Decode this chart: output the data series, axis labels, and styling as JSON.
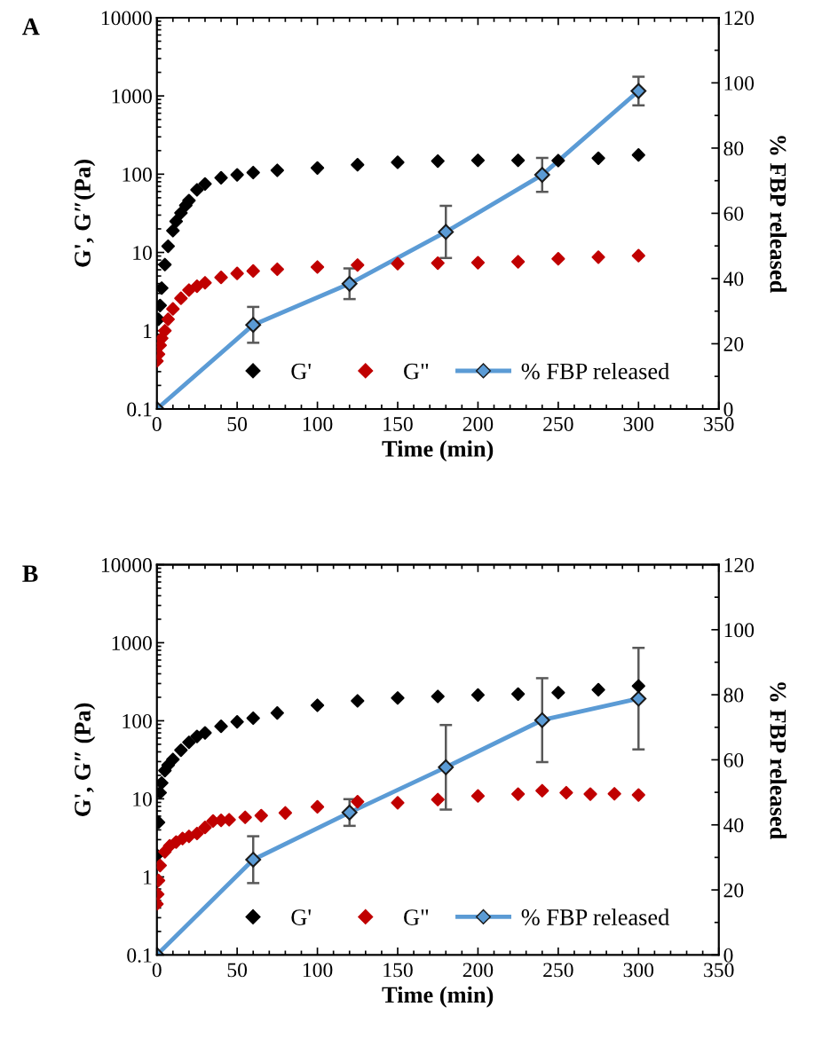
{
  "chart_data": [
    {
      "type": "scatter",
      "title": "A",
      "xlabel": "Time (min)",
      "ylabel": "G', G″(Pa)",
      "y2label": "% FBP released",
      "log": "y",
      "xlim": [
        0,
        350
      ],
      "xticks": [
        0,
        50,
        100,
        150,
        200,
        250,
        300,
        350
      ],
      "ylim": [
        0.1,
        10000
      ],
      "yticks": [
        0.1,
        1,
        10,
        100,
        1000,
        10000
      ],
      "y2lim": [
        0,
        120
      ],
      "y2ticks": [
        0,
        20,
        40,
        60,
        80,
        100,
        120
      ],
      "legend": "bottom right",
      "grid": false,
      "series": [
        {
          "name": "G'",
          "marker": "diamond",
          "color": "#000000",
          "axis": "y",
          "x": [
            1,
            2,
            3,
            5,
            7,
            10,
            12,
            15,
            18,
            20,
            25,
            30,
            40,
            50,
            60,
            75,
            100,
            125,
            150,
            175,
            200,
            225,
            250,
            275,
            300
          ],
          "values": [
            1.4,
            2.1,
            3.5,
            7,
            12,
            19,
            25,
            32,
            40,
            46,
            63,
            75,
            90,
            98,
            105,
            112,
            120,
            132,
            142,
            147,
            150,
            150,
            149,
            160,
            176
          ]
        },
        {
          "name": "G\"",
          "marker": "diamond",
          "color": "#c00000",
          "axis": "y",
          "x": [
            0,
            1,
            2,
            3,
            5,
            7,
            10,
            15,
            20,
            25,
            30,
            40,
            50,
            60,
            75,
            100,
            125,
            150,
            175,
            200,
            225,
            250,
            275,
            300
          ],
          "values": [
            0.41,
            0.5,
            0.65,
            0.8,
            1,
            1.4,
            1.9,
            2.6,
            3.3,
            3.7,
            4.1,
            4.8,
            5.4,
            5.8,
            6.1,
            6.5,
            6.9,
            7.2,
            7.3,
            7.4,
            7.6,
            8.3,
            8.7,
            9.1
          ]
        },
        {
          "name": "% FBP released",
          "type": "line",
          "marker": "diamond",
          "color": "#5b9bd5",
          "axis": "y2",
          "x": [
            0,
            60,
            120,
            180,
            240,
            300
          ],
          "values": [
            0,
            25.8,
            38.4,
            54.3,
            71.8,
            97.5
          ],
          "errors": [
            null,
            5.5,
            4.7,
            8,
            5.2,
            4.4
          ]
        }
      ]
    },
    {
      "type": "scatter",
      "title": "B",
      "xlabel": "Time (min)",
      "ylabel": "G', G″ (Pa)",
      "y2label": "% FBP released",
      "log": "y",
      "xlim": [
        0,
        350
      ],
      "xticks": [
        0,
        50,
        100,
        150,
        200,
        250,
        300,
        350
      ],
      "ylim": [
        0.1,
        10000
      ],
      "yticks": [
        0.1,
        1,
        10,
        100,
        1000,
        10000
      ],
      "y2lim": [
        0,
        120
      ],
      "y2ticks": [
        0,
        20,
        40,
        60,
        80,
        100,
        120
      ],
      "legend": "bottom right",
      "grid": false,
      "series": [
        {
          "name": "G'",
          "marker": "diamond",
          "color": "#000000",
          "axis": "y",
          "x": [
            0,
            1,
            2,
            3,
            5,
            7,
            10,
            15,
            20,
            25,
            30,
            40,
            50,
            60,
            75,
            100,
            125,
            150,
            175,
            200,
            225,
            250,
            275,
            300
          ],
          "values": [
            1.9,
            5,
            12,
            16,
            23,
            27,
            32,
            42,
            53,
            63,
            70,
            85,
            97,
            108,
            126,
            158,
            180,
            196,
            205,
            214,
            220,
            229,
            250,
            279
          ]
        },
        {
          "name": "G\"",
          "marker": "diamond",
          "color": "#c00000",
          "axis": "y",
          "x": [
            0,
            0.5,
            1,
            2,
            5,
            8,
            12,
            16,
            20,
            25,
            30,
            35,
            40,
            45,
            55,
            65,
            80,
            100,
            125,
            150,
            175,
            200,
            225,
            240,
            255,
            270,
            285,
            300
          ],
          "values": [
            0.45,
            0.6,
            0.9,
            1.4,
            2.1,
            2.5,
            2.8,
            3.1,
            3.3,
            3.6,
            4.3,
            5.2,
            5.3,
            5.4,
            5.8,
            6.1,
            6.6,
            7.9,
            9.2,
            8.9,
            9.8,
            10.9,
            11.5,
            12.7,
            12,
            11.5,
            11.6,
            11.2
          ]
        },
        {
          "name": "% FBP released",
          "type": "line",
          "marker": "diamond",
          "color": "#5b9bd5",
          "axis": "y2",
          "x": [
            0,
            60,
            120,
            180,
            240,
            300
          ],
          "values": [
            0,
            29.3,
            43.8,
            57.7,
            72.2,
            78.8
          ],
          "errors": [
            null,
            7.2,
            4.1,
            13,
            12.9,
            15.6
          ]
        }
      ]
    }
  ]
}
